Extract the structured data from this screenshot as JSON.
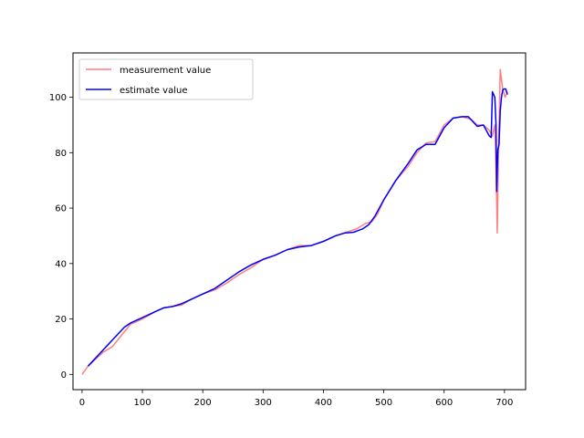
{
  "chart_data": {
    "type": "line",
    "title": "",
    "xlabel": "",
    "ylabel": "",
    "xlim": [
      -15,
      735
    ],
    "ylim": [
      -5.5,
      116
    ],
    "xticks": [
      0,
      100,
      200,
      300,
      400,
      500,
      600,
      700
    ],
    "yticks": [
      0,
      20,
      40,
      60,
      80,
      100
    ],
    "grid": false,
    "legend_position": "upper-left",
    "series": [
      {
        "name": "measurement value",
        "color": "#ff7f7f",
        "points": [
          [
            0,
            0
          ],
          [
            10,
            3
          ],
          [
            20,
            5
          ],
          [
            35,
            8
          ],
          [
            50,
            10
          ],
          [
            65,
            14
          ],
          [
            80,
            18
          ],
          [
            100,
            20
          ],
          [
            120,
            22.5
          ],
          [
            135,
            24
          ],
          [
            150,
            24.5
          ],
          [
            165,
            25
          ],
          [
            180,
            27
          ],
          [
            200,
            29
          ],
          [
            220,
            30.5
          ],
          [
            240,
            33
          ],
          [
            260,
            36
          ],
          [
            280,
            38.5
          ],
          [
            300,
            41.5
          ],
          [
            320,
            43
          ],
          [
            340,
            45
          ],
          [
            360,
            46.5
          ],
          [
            380,
            46.5
          ],
          [
            400,
            48
          ],
          [
            420,
            50
          ],
          [
            440,
            51.5
          ],
          [
            455,
            52.5
          ],
          [
            470,
            54.5
          ],
          [
            480,
            55
          ],
          [
            490,
            58
          ],
          [
            500,
            63
          ],
          [
            520,
            70
          ],
          [
            540,
            75
          ],
          [
            555,
            80
          ],
          [
            570,
            83.5
          ],
          [
            585,
            84
          ],
          [
            600,
            90
          ],
          [
            615,
            92.5
          ],
          [
            630,
            93
          ],
          [
            645,
            92
          ],
          [
            655,
            90
          ],
          [
            665,
            90
          ],
          [
            675,
            88
          ],
          [
            680,
            86
          ],
          [
            684,
            90
          ],
          [
            686,
            75
          ],
          [
            688,
            51
          ],
          [
            690,
            80
          ],
          [
            693,
            110
          ],
          [
            697,
            103
          ],
          [
            701,
            100
          ],
          [
            705,
            102
          ]
        ]
      },
      {
        "name": "estimate value",
        "color": "#0000ff",
        "points": [
          [
            10,
            3
          ],
          [
            25,
            6.5
          ],
          [
            40,
            10
          ],
          [
            55,
            13.5
          ],
          [
            70,
            17
          ],
          [
            80,
            18.5
          ],
          [
            100,
            20.5
          ],
          [
            120,
            22.5
          ],
          [
            135,
            24
          ],
          [
            150,
            24.5
          ],
          [
            165,
            25.5
          ],
          [
            180,
            27
          ],
          [
            200,
            29
          ],
          [
            220,
            31
          ],
          [
            240,
            34
          ],
          [
            260,
            37
          ],
          [
            280,
            39.5
          ],
          [
            300,
            41.5
          ],
          [
            320,
            43
          ],
          [
            340,
            45
          ],
          [
            360,
            46
          ],
          [
            380,
            46.5
          ],
          [
            400,
            48
          ],
          [
            420,
            50
          ],
          [
            435,
            51
          ],
          [
            450,
            51.3
          ],
          [
            465,
            52.5
          ],
          [
            475,
            54
          ],
          [
            485,
            57
          ],
          [
            500,
            63
          ],
          [
            520,
            70
          ],
          [
            540,
            76
          ],
          [
            555,
            81
          ],
          [
            570,
            83
          ],
          [
            585,
            83
          ],
          [
            600,
            89
          ],
          [
            615,
            92.5
          ],
          [
            630,
            93
          ],
          [
            640,
            93
          ],
          [
            655,
            89.5
          ],
          [
            665,
            90
          ],
          [
            675,
            86
          ],
          [
            678,
            85.5
          ],
          [
            680,
            102
          ],
          [
            684,
            100
          ],
          [
            686,
            90
          ],
          [
            687,
            66
          ],
          [
            689,
            81
          ],
          [
            691,
            83
          ],
          [
            693,
            95
          ],
          [
            695,
            100
          ],
          [
            697,
            102.5
          ],
          [
            699,
            103
          ],
          [
            702,
            103
          ],
          [
            705,
            101
          ]
        ]
      }
    ]
  }
}
